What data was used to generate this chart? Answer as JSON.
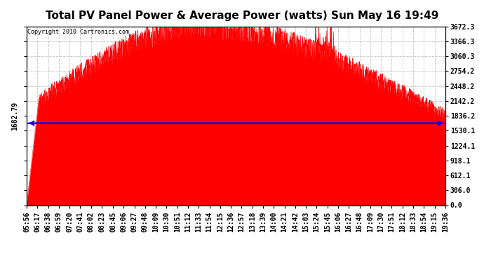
{
  "title": "Total PV Panel Power & Average Power (watts) Sun May 16 19:49",
  "copyright_text": "Copyright 2010 Cartronics.com",
  "avg_power": 1682.79,
  "y_max": 3672.3,
  "y_min": 0.0,
  "y_ticks": [
    0.0,
    306.0,
    612.1,
    918.1,
    1224.1,
    1530.1,
    1836.2,
    2142.2,
    2448.2,
    2754.2,
    3060.3,
    3366.3,
    3672.3
  ],
  "x_labels": [
    "05:56",
    "06:17",
    "06:38",
    "06:59",
    "07:20",
    "07:41",
    "08:02",
    "08:23",
    "08:45",
    "09:06",
    "09:27",
    "09:48",
    "10:09",
    "10:30",
    "10:51",
    "11:12",
    "11:33",
    "11:54",
    "12:15",
    "12:36",
    "12:57",
    "13:18",
    "13:39",
    "14:00",
    "14:21",
    "14:42",
    "15:03",
    "15:24",
    "15:45",
    "16:06",
    "16:27",
    "16:48",
    "17:09",
    "17:30",
    "17:51",
    "18:12",
    "18:33",
    "18:54",
    "19:15",
    "19:36"
  ],
  "fill_color": "#FF0000",
  "line_color": "#FF0000",
  "avg_line_color": "#0000FF",
  "background_color": "#FFFFFF",
  "grid_color": "#CCCCCC",
  "plot_bg_color": "#FFFFFF",
  "title_fontsize": 11,
  "tick_fontsize": 7,
  "avg_label_fontsize": 7
}
